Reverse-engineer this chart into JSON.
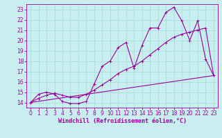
{
  "title": "",
  "xlabel": "Windchill (Refroidissement éolien,°C)",
  "bg_color": "#c8eef0",
  "grid_color": "#aadddd",
  "line_color": "#990099",
  "xlim": [
    -0.5,
    23.5
  ],
  "ylim": [
    13.5,
    23.5
  ],
  "xticks": [
    0,
    1,
    2,
    3,
    4,
    5,
    6,
    7,
    8,
    9,
    10,
    11,
    12,
    13,
    14,
    15,
    16,
    17,
    18,
    19,
    20,
    21,
    22,
    23
  ],
  "yticks": [
    14,
    15,
    16,
    17,
    18,
    19,
    20,
    21,
    22,
    23
  ],
  "series1_x": [
    0,
    1,
    2,
    3,
    4,
    5,
    6,
    7,
    8,
    9,
    10,
    11,
    12,
    13,
    14,
    15,
    16,
    17,
    18,
    19,
    20,
    21,
    22,
    23
  ],
  "series1_y": [
    14.0,
    14.8,
    15.0,
    14.8,
    14.1,
    13.9,
    13.9,
    14.1,
    15.8,
    17.5,
    18.0,
    19.3,
    19.8,
    17.3,
    19.5,
    21.2,
    21.2,
    22.7,
    23.2,
    21.9,
    20.0,
    21.9,
    18.2,
    16.6
  ],
  "series2_x": [
    0,
    1,
    2,
    3,
    4,
    5,
    6,
    7,
    8,
    9,
    10,
    11,
    12,
    13,
    14,
    15,
    16,
    17,
    18,
    19,
    20,
    21,
    22,
    23
  ],
  "series2_y": [
    14.0,
    14.4,
    14.7,
    14.9,
    14.7,
    14.5,
    14.5,
    14.8,
    15.2,
    15.7,
    16.2,
    16.8,
    17.2,
    17.5,
    18.0,
    18.6,
    19.2,
    19.8,
    20.3,
    20.6,
    20.8,
    21.0,
    21.2,
    16.6
  ],
  "series3_x": [
    0,
    23
  ],
  "series3_y": [
    14.0,
    16.6
  ],
  "tick_fontsize": 5.5,
  "xlabel_fontsize": 6.0,
  "linewidth": 0.8,
  "markersize": 2.5
}
